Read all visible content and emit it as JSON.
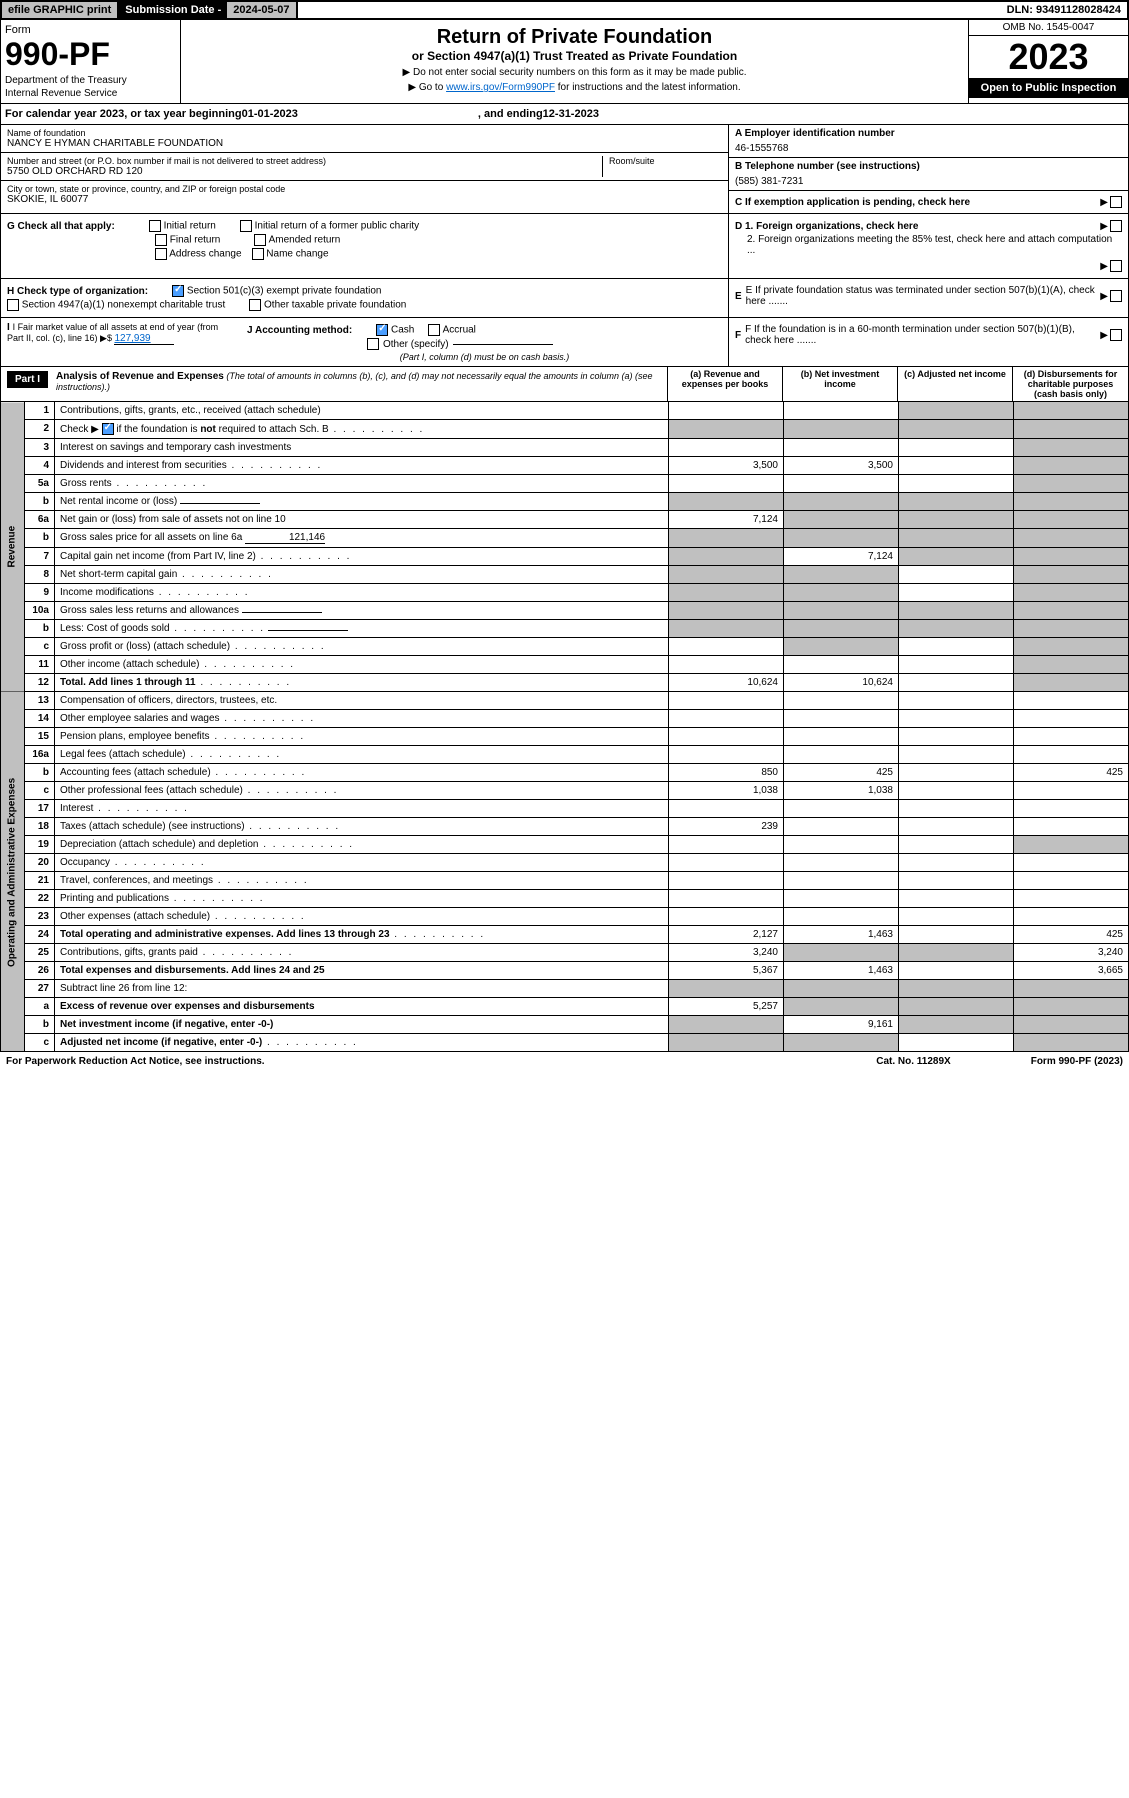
{
  "topbar": {
    "efile": "efile GRAPHIC print",
    "subdate_label": "Submission Date - ",
    "subdate": "2024-05-07",
    "dln": "DLN: 93491128028424"
  },
  "header": {
    "form_label": "Form",
    "form_no": "990-PF",
    "dept1": "Department of the Treasury",
    "dept2": "Internal Revenue Service",
    "title": "Return of Private Foundation",
    "subtitle": "or Section 4947(a)(1) Trust Treated as Private Foundation",
    "instr1": "▶ Do not enter social security numbers on this form as it may be made public.",
    "instr2": "▶ Go to ",
    "instr2_link": "www.irs.gov/Form990PF",
    "instr2_rest": " for instructions and the latest information.",
    "omb": "OMB No. 1545-0047",
    "year": "2023",
    "open": "Open to Public Inspection"
  },
  "calyear": {
    "prefix": "For calendar year 2023, or tax year beginning ",
    "begin": "01-01-2023",
    "mid": ", and ending ",
    "end": "12-31-2023"
  },
  "info": {
    "name_label": "Name of foundation",
    "name": "NANCY E HYMAN CHARITABLE FOUNDATION",
    "addr_label": "Number and street (or P.O. box number if mail is not delivered to street address)",
    "addr": "5750 OLD ORCHARD RD 120",
    "room_label": "Room/suite",
    "city_label": "City or town, state or province, country, and ZIP or foreign postal code",
    "city": "SKOKIE, IL  60077",
    "ein_label": "A Employer identification number",
    "ein": "46-1555768",
    "phone_label": "B Telephone number (see instructions)",
    "phone": "(585) 381-7231",
    "c_label": "C If exemption application is pending, check here",
    "d1_label": "D 1. Foreign organizations, check here",
    "d2_label": "2. Foreign organizations meeting the 85% test, check here and attach computation ...",
    "e_label": "E If private foundation status was terminated under section 507(b)(1)(A), check here .......",
    "f_label": "F If the foundation is in a 60-month termination under section 507(b)(1)(B), check here ......."
  },
  "checks": {
    "g_label": "G Check all that apply:",
    "g_opts": [
      "Initial return",
      "Initial return of a former public charity",
      "Final return",
      "Amended return",
      "Address change",
      "Name change"
    ],
    "h_label": "H Check type of organization:",
    "h1": "Section 501(c)(3) exempt private foundation",
    "h2": "Section 4947(a)(1) nonexempt charitable trust",
    "h3": "Other taxable private foundation",
    "i_label": "I Fair market value of all assets at end of year (from Part II, col. (c), line 16) ▶$ ",
    "i_val": "127,939",
    "j_label": "J Accounting method:",
    "j_cash": "Cash",
    "j_accrual": "Accrual",
    "j_other": "Other (specify)",
    "j_note": "(Part I, column (d) must be on cash basis.)"
  },
  "part1": {
    "label": "Part I",
    "title": "Analysis of Revenue and Expenses",
    "title_note": " (The total of amounts in columns (b), (c), and (d) may not necessarily equal the amounts in column (a) (see instructions).)",
    "col_a": "(a) Revenue and expenses per books",
    "col_b": "(b) Net investment income",
    "col_c": "(c) Adjusted net income",
    "col_d": "(d) Disbursements for charitable purposes (cash basis only)"
  },
  "sides": {
    "revenue": "Revenue",
    "expenses": "Operating and Administrative Expenses"
  },
  "rows": [
    {
      "n": "1",
      "d": "Contributions, gifts, grants, etc., received (attach schedule)",
      "a": "",
      "b": "",
      "c": "shaded",
      "dd": "shaded"
    },
    {
      "n": "2",
      "d": "Check ▶ ☑ if the foundation is not required to attach Sch. B",
      "dots": true,
      "a": "shaded",
      "b": "shaded",
      "c": "shaded",
      "dd": "shaded",
      "checked": true,
      "notreq": true
    },
    {
      "n": "3",
      "d": "Interest on savings and temporary cash investments",
      "a": "",
      "b": "",
      "c": "",
      "dd": "shaded"
    },
    {
      "n": "4",
      "d": "Dividends and interest from securities",
      "dots": true,
      "a": "3,500",
      "b": "3,500",
      "c": "",
      "dd": "shaded"
    },
    {
      "n": "5a",
      "d": "Gross rents",
      "dots": true,
      "a": "",
      "b": "",
      "c": "",
      "dd": "shaded"
    },
    {
      "n": "b",
      "d": "Net rental income or (loss)",
      "inline": true,
      "a": "shaded",
      "b": "shaded",
      "c": "shaded",
      "dd": "shaded"
    },
    {
      "n": "6a",
      "d": "Net gain or (loss) from sale of assets not on line 10",
      "a": "7,124",
      "b": "shaded",
      "c": "shaded",
      "dd": "shaded"
    },
    {
      "n": "b",
      "d": "Gross sales price for all assets on line 6a",
      "inline": true,
      "inlineval": "121,146",
      "a": "shaded",
      "b": "shaded",
      "c": "shaded",
      "dd": "shaded"
    },
    {
      "n": "7",
      "d": "Capital gain net income (from Part IV, line 2)",
      "dots": true,
      "a": "shaded",
      "b": "7,124",
      "c": "shaded",
      "dd": "shaded"
    },
    {
      "n": "8",
      "d": "Net short-term capital gain",
      "dots": true,
      "a": "shaded",
      "b": "shaded",
      "c": "",
      "dd": "shaded"
    },
    {
      "n": "9",
      "d": "Income modifications",
      "dots": true,
      "a": "shaded",
      "b": "shaded",
      "c": "",
      "dd": "shaded"
    },
    {
      "n": "10a",
      "d": "Gross sales less returns and allowances",
      "inline": true,
      "a": "shaded",
      "b": "shaded",
      "c": "shaded",
      "dd": "shaded"
    },
    {
      "n": "b",
      "d": "Less: Cost of goods sold",
      "dots": true,
      "inline": true,
      "a": "shaded",
      "b": "shaded",
      "c": "shaded",
      "dd": "shaded"
    },
    {
      "n": "c",
      "d": "Gross profit or (loss) (attach schedule)",
      "dots": true,
      "a": "",
      "b": "shaded",
      "c": "",
      "dd": "shaded"
    },
    {
      "n": "11",
      "d": "Other income (attach schedule)",
      "dots": true,
      "a": "",
      "b": "",
      "c": "",
      "dd": "shaded"
    },
    {
      "n": "12",
      "d": "Total. Add lines 1 through 11",
      "dots": true,
      "bold": true,
      "a": "10,624",
      "b": "10,624",
      "c": "",
      "dd": "shaded"
    },
    {
      "n": "13",
      "d": "Compensation of officers, directors, trustees, etc.",
      "a": "",
      "b": "",
      "c": "",
      "dd": "",
      "sec": "exp"
    },
    {
      "n": "14",
      "d": "Other employee salaries and wages",
      "dots": true,
      "a": "",
      "b": "",
      "c": "",
      "dd": ""
    },
    {
      "n": "15",
      "d": "Pension plans, employee benefits",
      "dots": true,
      "a": "",
      "b": "",
      "c": "",
      "dd": ""
    },
    {
      "n": "16a",
      "d": "Legal fees (attach schedule)",
      "dots": true,
      "a": "",
      "b": "",
      "c": "",
      "dd": ""
    },
    {
      "n": "b",
      "d": "Accounting fees (attach schedule)",
      "dots": true,
      "a": "850",
      "b": "425",
      "c": "",
      "dd": "425"
    },
    {
      "n": "c",
      "d": "Other professional fees (attach schedule)",
      "dots": true,
      "a": "1,038",
      "b": "1,038",
      "c": "",
      "dd": ""
    },
    {
      "n": "17",
      "d": "Interest",
      "dots": true,
      "a": "",
      "b": "",
      "c": "",
      "dd": ""
    },
    {
      "n": "18",
      "d": "Taxes (attach schedule) (see instructions)",
      "dots": true,
      "a": "239",
      "b": "",
      "c": "",
      "dd": ""
    },
    {
      "n": "19",
      "d": "Depreciation (attach schedule) and depletion",
      "dots": true,
      "a": "",
      "b": "",
      "c": "",
      "dd": "shaded"
    },
    {
      "n": "20",
      "d": "Occupancy",
      "dots": true,
      "a": "",
      "b": "",
      "c": "",
      "dd": ""
    },
    {
      "n": "21",
      "d": "Travel, conferences, and meetings",
      "dots": true,
      "a": "",
      "b": "",
      "c": "",
      "dd": ""
    },
    {
      "n": "22",
      "d": "Printing and publications",
      "dots": true,
      "a": "",
      "b": "",
      "c": "",
      "dd": ""
    },
    {
      "n": "23",
      "d": "Other expenses (attach schedule)",
      "dots": true,
      "a": "",
      "b": "",
      "c": "",
      "dd": ""
    },
    {
      "n": "24",
      "d": "Total operating and administrative expenses. Add lines 13 through 23",
      "dots": true,
      "bold": true,
      "a": "2,127",
      "b": "1,463",
      "c": "",
      "dd": "425"
    },
    {
      "n": "25",
      "d": "Contributions, gifts, grants paid",
      "dots": true,
      "a": "3,240",
      "b": "shaded",
      "c": "shaded",
      "dd": "3,240"
    },
    {
      "n": "26",
      "d": "Total expenses and disbursements. Add lines 24 and 25",
      "bold": true,
      "a": "5,367",
      "b": "1,463",
      "c": "",
      "dd": "3,665"
    },
    {
      "n": "27",
      "d": "Subtract line 26 from line 12:",
      "a": "shaded",
      "b": "shaded",
      "c": "shaded",
      "dd": "shaded"
    },
    {
      "n": "a",
      "d": "Excess of revenue over expenses and disbursements",
      "bold": true,
      "a": "5,257",
      "b": "shaded",
      "c": "shaded",
      "dd": "shaded"
    },
    {
      "n": "b",
      "d": "Net investment income (if negative, enter -0-)",
      "bold": true,
      "a": "shaded",
      "b": "9,161",
      "c": "shaded",
      "dd": "shaded"
    },
    {
      "n": "c",
      "d": "Adjusted net income (if negative, enter -0-)",
      "dots": true,
      "bold": true,
      "a": "shaded",
      "b": "shaded",
      "c": "",
      "dd": "shaded"
    }
  ],
  "footer": {
    "left": "For Paperwork Reduction Act Notice, see instructions.",
    "mid": "Cat. No. 11289X",
    "right": "Form 990-PF (2023)"
  }
}
